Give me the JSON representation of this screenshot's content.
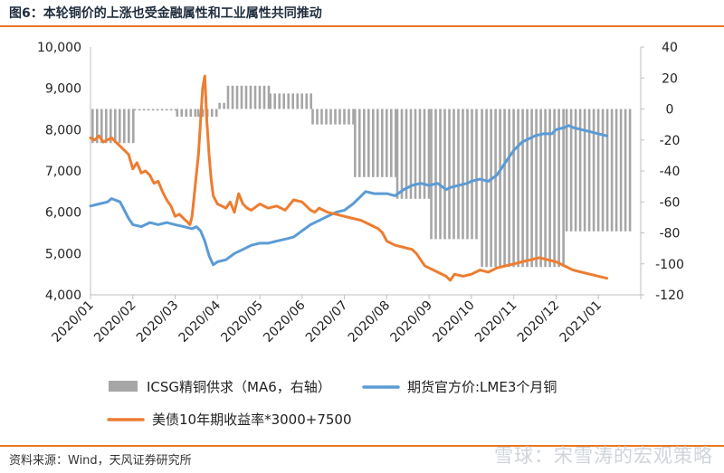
{
  "title": "图6：本轮铜价的上涨也受金融属性和工业属性共同推动",
  "source": "资料来源：Wind，天风证券研究所",
  "watermark": "雪球：宋雪涛的宏观策略",
  "chart_data": {
    "type": "bar+line",
    "x_ticks": [
      "2020/01",
      "2020/02",
      "2020/03",
      "2020/04",
      "2020/05",
      "2020/06",
      "2020/07",
      "2020/08",
      "2020/09",
      "2020/10",
      "2020/11",
      "2020/12",
      "2021/01"
    ],
    "y_left": {
      "min": 4000,
      "max": 10000,
      "ticks": [
        "4,000",
        "5,000",
        "6,000",
        "7,000",
        "8,000",
        "9,000",
        "10,000"
      ]
    },
    "y_right": {
      "min": -120,
      "max": 40,
      "ticks": [
        "-120",
        "-100",
        "-80",
        "-60",
        "-40",
        "-20",
        "0",
        "20",
        "40"
      ]
    },
    "series": [
      {
        "name": "ICSG精铜供求（MA6，右轴）",
        "axis": "right",
        "type": "bar",
        "color": "#a6a6a6",
        "segments": [
          {
            "from": 0.0,
            "to": 1.0,
            "value": -22
          },
          {
            "from": 1.0,
            "to": 2.0,
            "value": -1
          },
          {
            "from": 2.0,
            "to": 2.5,
            "value": -5
          },
          {
            "from": 2.5,
            "to": 3.0,
            "value": -5
          },
          {
            "from": 3.0,
            "to": 3.2,
            "value": 4
          },
          {
            "from": 3.2,
            "to": 4.2,
            "value": 15
          },
          {
            "from": 4.2,
            "to": 5.2,
            "value": 10
          },
          {
            "from": 5.2,
            "to": 6.2,
            "value": -10
          },
          {
            "from": 6.2,
            "to": 7.2,
            "value": -44
          },
          {
            "from": 7.2,
            "to": 8.0,
            "value": -58
          },
          {
            "from": 8.0,
            "to": 9.2,
            "value": -84
          },
          {
            "from": 9.2,
            "to": 11.2,
            "value": -102
          },
          {
            "from": 11.2,
            "to": 12.8,
            "value": -79
          }
        ]
      },
      {
        "name": "期货官方价:LME3个月铜",
        "axis": "left",
        "type": "line",
        "color": "#5b9bd5",
        "points": [
          [
            0.0,
            6150
          ],
          [
            0.2,
            6200
          ],
          [
            0.4,
            6250
          ],
          [
            0.5,
            6330
          ],
          [
            0.7,
            6250
          ],
          [
            0.9,
            5850
          ],
          [
            1.0,
            5700
          ],
          [
            1.2,
            5650
          ],
          [
            1.4,
            5750
          ],
          [
            1.6,
            5700
          ],
          [
            1.8,
            5750
          ],
          [
            2.0,
            5700
          ],
          [
            2.2,
            5650
          ],
          [
            2.4,
            5600
          ],
          [
            2.5,
            5650
          ],
          [
            2.6,
            5550
          ],
          [
            2.7,
            5300
          ],
          [
            2.8,
            4950
          ],
          [
            2.9,
            4730
          ],
          [
            3.0,
            4800
          ],
          [
            3.2,
            4850
          ],
          [
            3.4,
            5000
          ],
          [
            3.6,
            5100
          ],
          [
            3.8,
            5200
          ],
          [
            4.0,
            5250
          ],
          [
            4.2,
            5250
          ],
          [
            4.4,
            5300
          ],
          [
            4.6,
            5350
          ],
          [
            4.8,
            5400
          ],
          [
            5.0,
            5550
          ],
          [
            5.2,
            5700
          ],
          [
            5.4,
            5800
          ],
          [
            5.6,
            5900
          ],
          [
            5.8,
            6000
          ],
          [
            6.0,
            6050
          ],
          [
            6.2,
            6200
          ],
          [
            6.4,
            6400
          ],
          [
            6.5,
            6500
          ],
          [
            6.7,
            6450
          ],
          [
            6.9,
            6450
          ],
          [
            7.0,
            6450
          ],
          [
            7.2,
            6400
          ],
          [
            7.4,
            6550
          ],
          [
            7.6,
            6650
          ],
          [
            7.8,
            6700
          ],
          [
            8.0,
            6650
          ],
          [
            8.2,
            6700
          ],
          [
            8.4,
            6550
          ],
          [
            8.5,
            6600
          ],
          [
            8.7,
            6650
          ],
          [
            8.9,
            6700
          ],
          [
            9.0,
            6750
          ],
          [
            9.2,
            6800
          ],
          [
            9.4,
            6750
          ],
          [
            9.6,
            6900
          ],
          [
            9.8,
            7200
          ],
          [
            10.0,
            7500
          ],
          [
            10.2,
            7700
          ],
          [
            10.4,
            7800
          ],
          [
            10.5,
            7850
          ],
          [
            10.7,
            7900
          ],
          [
            10.9,
            7900
          ],
          [
            11.0,
            8000
          ],
          [
            11.2,
            8050
          ],
          [
            11.3,
            8100
          ],
          [
            11.4,
            8050
          ],
          [
            11.6,
            8000
          ],
          [
            11.8,
            7950
          ],
          [
            12.0,
            7900
          ],
          [
            12.2,
            7850
          ]
        ]
      },
      {
        "name": "美债10年期收益率*3000+7500",
        "axis": "left",
        "type": "line",
        "color": "#ed7d31",
        "points": [
          [
            0.0,
            7800
          ],
          [
            0.1,
            7750
          ],
          [
            0.2,
            7850
          ],
          [
            0.3,
            7700
          ],
          [
            0.5,
            7800
          ],
          [
            0.7,
            7600
          ],
          [
            0.9,
            7400
          ],
          [
            1.0,
            7050
          ],
          [
            1.1,
            7200
          ],
          [
            1.2,
            6950
          ],
          [
            1.3,
            7000
          ],
          [
            1.4,
            6900
          ],
          [
            1.5,
            6700
          ],
          [
            1.6,
            6750
          ],
          [
            1.7,
            6500
          ],
          [
            1.8,
            6300
          ],
          [
            1.9,
            6150
          ],
          [
            2.0,
            5900
          ],
          [
            2.1,
            5950
          ],
          [
            2.2,
            5850
          ],
          [
            2.3,
            5750
          ],
          [
            2.35,
            5700
          ],
          [
            2.4,
            5900
          ],
          [
            2.45,
            6400
          ],
          [
            2.5,
            6900
          ],
          [
            2.55,
            7400
          ],
          [
            2.6,
            8200
          ],
          [
            2.65,
            9000
          ],
          [
            2.7,
            9300
          ],
          [
            2.75,
            8200
          ],
          [
            2.8,
            7400
          ],
          [
            2.85,
            6800
          ],
          [
            2.9,
            6400
          ],
          [
            3.0,
            6200
          ],
          [
            3.1,
            6150
          ],
          [
            3.2,
            6100
          ],
          [
            3.3,
            6250
          ],
          [
            3.4,
            6000
          ],
          [
            3.5,
            6450
          ],
          [
            3.6,
            6200
          ],
          [
            3.7,
            6100
          ],
          [
            3.8,
            6050
          ],
          [
            4.0,
            6200
          ],
          [
            4.2,
            6100
          ],
          [
            4.4,
            6150
          ],
          [
            4.6,
            6050
          ],
          [
            4.8,
            6300
          ],
          [
            5.0,
            6250
          ],
          [
            5.1,
            6150
          ],
          [
            5.2,
            6050
          ],
          [
            5.3,
            6000
          ],
          [
            5.4,
            6100
          ],
          [
            5.6,
            6000
          ],
          [
            5.8,
            5950
          ],
          [
            6.0,
            5900
          ],
          [
            6.2,
            5850
          ],
          [
            6.4,
            5800
          ],
          [
            6.6,
            5700
          ],
          [
            6.8,
            5600
          ],
          [
            6.9,
            5500
          ],
          [
            7.0,
            5300
          ],
          [
            7.2,
            5200
          ],
          [
            7.4,
            5150
          ],
          [
            7.6,
            5100
          ],
          [
            7.7,
            5000
          ],
          [
            7.8,
            4850
          ],
          [
            7.9,
            4700
          ],
          [
            8.0,
            4650
          ],
          [
            8.2,
            4550
          ],
          [
            8.4,
            4450
          ],
          [
            8.5,
            4350
          ],
          [
            8.6,
            4500
          ],
          [
            8.8,
            4450
          ],
          [
            9.0,
            4500
          ],
          [
            9.2,
            4600
          ],
          [
            9.4,
            4550
          ],
          [
            9.6,
            4650
          ],
          [
            9.8,
            4700
          ],
          [
            10.0,
            4750
          ],
          [
            10.2,
            4800
          ],
          [
            10.4,
            4850
          ],
          [
            10.6,
            4900
          ],
          [
            10.8,
            4850
          ],
          [
            11.0,
            4800
          ],
          [
            11.2,
            4700
          ],
          [
            11.4,
            4600
          ],
          [
            11.6,
            4550
          ],
          [
            11.8,
            4500
          ],
          [
            12.0,
            4450
          ],
          [
            12.2,
            4400
          ]
        ]
      }
    ]
  }
}
